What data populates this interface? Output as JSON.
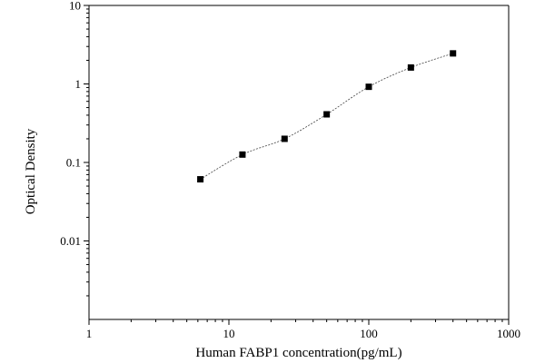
{
  "chart_data": {
    "type": "scatter",
    "title": "",
    "xlabel": "Human FABP1 concentration(pg/mL)",
    "ylabel": "Optical Density",
    "x_scale": "log",
    "y_scale": "log",
    "xlim": [
      1,
      1000
    ],
    "ylim": [
      0.001,
      10
    ],
    "x_ticks": [
      {
        "value": 1,
        "label": "1"
      },
      {
        "value": 10,
        "label": "10"
      },
      {
        "value": 100,
        "label": "100"
      },
      {
        "value": 1000,
        "label": "1000"
      }
    ],
    "y_ticks": [
      {
        "value": 10,
        "label": "10"
      },
      {
        "value": 1,
        "label": "1"
      },
      {
        "value": 0.1,
        "label": "0.1"
      },
      {
        "value": 0.01,
        "label": "0.01"
      }
    ],
    "grid": false,
    "legend": "none",
    "series": [
      {
        "points": [
          {
            "x": 6.25,
            "y": 0.061
          },
          {
            "x": 12.5,
            "y": 0.126
          },
          {
            "x": 25,
            "y": 0.2
          },
          {
            "x": 50,
            "y": 0.41
          },
          {
            "x": 100,
            "y": 0.92
          },
          {
            "x": 200,
            "y": 1.62
          },
          {
            "x": 400,
            "y": 2.45
          }
        ],
        "marker": "square",
        "fit_line": "four-parameter logistic curve, thin dashed"
      }
    ],
    "colors": {
      "marker": "#000000",
      "fit": "#444444",
      "axis": "#000000"
    }
  }
}
